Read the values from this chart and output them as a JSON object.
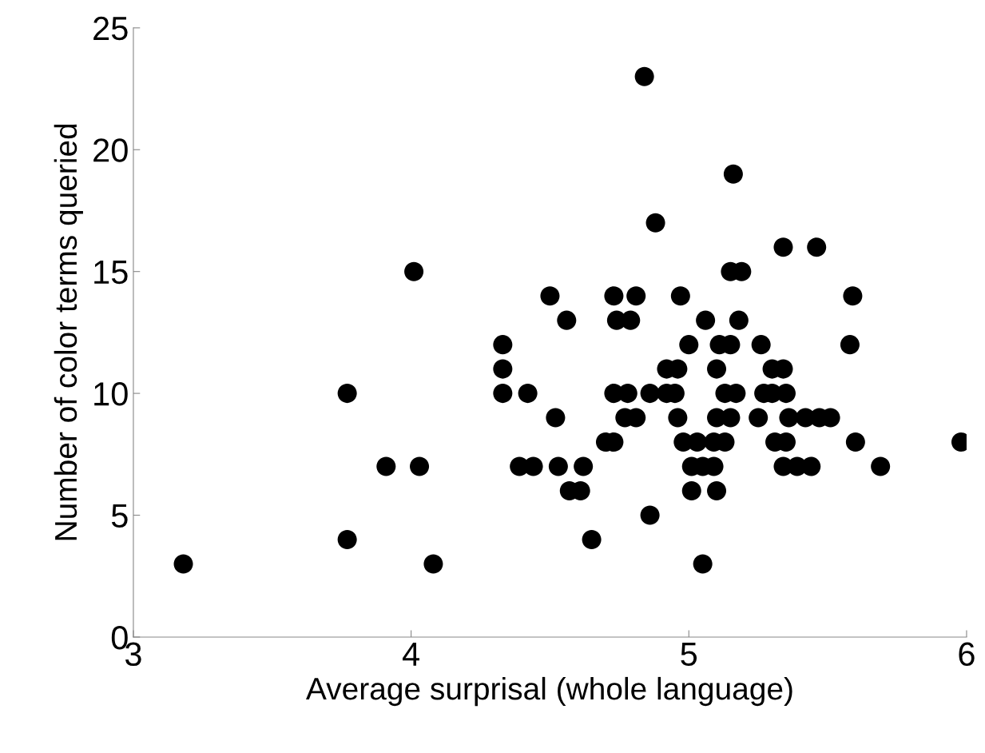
{
  "chart_data": {
    "type": "scatter",
    "xlabel": "Average surprisal (whole language)",
    "ylabel": "Number of color terms queried",
    "xlim": [
      3,
      6
    ],
    "xticks": [
      3,
      4,
      5,
      6
    ],
    "ylim": [
      0,
      25
    ],
    "yticks": [
      0,
      5,
      10,
      15,
      20,
      25
    ],
    "grid": false,
    "marker": "circle",
    "series": [
      {
        "color": "#000000",
        "x": [
          4.84,
          5.16,
          4.88,
          5.34,
          5.46,
          4.01,
          5.15,
          5.19,
          4.5,
          4.73,
          4.81,
          4.97,
          5.59,
          4.56,
          4.74,
          4.79,
          5.06,
          5.18,
          4.33,
          5.0,
          5.11,
          5.15,
          5.26,
          5.58,
          4.33,
          4.92,
          4.96,
          5.1,
          5.3,
          5.34,
          3.77,
          4.33,
          4.42,
          4.73,
          4.78,
          4.86,
          4.92,
          4.95,
          5.13,
          5.17,
          5.27,
          5.3,
          5.35,
          4.52,
          4.77,
          4.81,
          4.96,
          5.1,
          5.15,
          5.25,
          5.36,
          5.42,
          5.47,
          5.51,
          4.7,
          4.73,
          4.98,
          5.03,
          5.09,
          5.13,
          5.31,
          5.35,
          5.6,
          5.98,
          3.91,
          4.03,
          4.39,
          4.44,
          4.53,
          4.62,
          5.01,
          5.05,
          5.09,
          5.34,
          5.39,
          5.44,
          5.69,
          4.57,
          4.61,
          5.01,
          5.1,
          4.86,
          3.77,
          4.65,
          3.18,
          4.08,
          5.05
        ],
        "values": [
          23,
          19,
          17,
          16,
          16,
          15,
          15,
          15,
          14,
          14,
          14,
          14,
          14,
          13,
          13,
          13,
          13,
          13,
          12,
          12,
          12,
          12,
          12,
          12,
          11,
          11,
          11,
          11,
          11,
          11,
          10,
          10,
          10,
          10,
          10,
          10,
          10,
          10,
          10,
          10,
          10,
          10,
          10,
          9,
          9,
          9,
          9,
          9,
          9,
          9,
          9,
          9,
          9,
          9,
          8,
          8,
          8,
          8,
          8,
          8,
          8,
          8,
          8,
          8,
          7,
          7,
          7,
          7,
          7,
          7,
          7,
          7,
          7,
          7,
          7,
          7,
          7,
          6,
          6,
          6,
          6,
          5,
          4,
          4,
          3,
          3,
          3
        ]
      }
    ]
  }
}
